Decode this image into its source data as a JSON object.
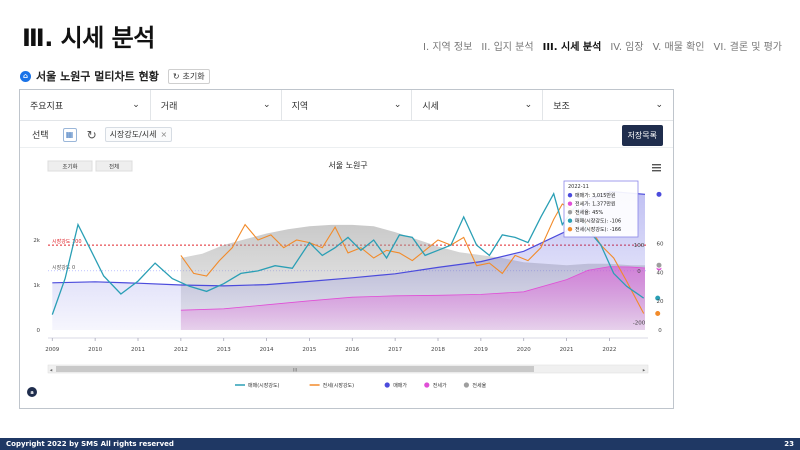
{
  "slide": {
    "title": "Ⅲ. 시세 분석",
    "nav": [
      "I. 지역 정보",
      "II. 입지 분석",
      "III. 시세 분석",
      "IV. 임장",
      "V. 매물 확인",
      "VI. 결론 및 평가"
    ],
    "active_index": 2
  },
  "subhead": {
    "title": "서울 노원구 멀티차트 현황",
    "reset": "초기화"
  },
  "filters": [
    "주요지표",
    "거래",
    "지역",
    "시세",
    "보조"
  ],
  "select_row": {
    "label": "선택",
    "chip": "시장강도/시세",
    "save": "저장목록"
  },
  "chart": {
    "btn_reset": "초기화",
    "btn_all": "전체",
    "title": "서울 노원구",
    "ref_label": "시장강도 100",
    "zero_label": "시장강도 0",
    "menu_icon": "hamburger-menu-icon",
    "scroll_label": "III",
    "logo_letter": "a",
    "colors": {
      "sale_strength": "#2a9fb5",
      "jeonse_strength": "#f28b2a",
      "sale_price": "#4b4bdc",
      "jeonse_price": "#e04fd6",
      "ratio": "#9e9e9e",
      "refline": "#e0242a"
    },
    "legend": [
      {
        "label": "매매(시장강도)",
        "color": "#2a9fb5",
        "shape": "line"
      },
      {
        "label": "전세(시장강도)",
        "color": "#f28b2a",
        "shape": "line"
      },
      {
        "label": "매매가",
        "color": "#4b4bdc",
        "shape": "dot"
      },
      {
        "label": "전세가",
        "color": "#e04fd6",
        "shape": "dot"
      },
      {
        "label": "전세율",
        "color": "#9e9e9e",
        "shape": "dot"
      }
    ],
    "tooltip": {
      "date": "2022-11",
      "rows": [
        {
          "text": "매매가: 3,015만원",
          "color": "#4b4bdc"
        },
        {
          "text": "전세가: 1,377만원",
          "color": "#e04fd6"
        },
        {
          "text": "전세율: 45%",
          "color": "#9e9e9e"
        },
        {
          "text": "매매(시장강도): -106",
          "color": "#2a9fb5"
        },
        {
          "text": "전세(시장강도): -166",
          "color": "#f28b2a"
        }
      ]
    }
  },
  "chart_data": {
    "type": "line",
    "title": "서울 노원구",
    "x_ticks": [
      "2009",
      "2010",
      "2011",
      "2012",
      "2013",
      "2014",
      "2015",
      "2016",
      "2017",
      "2018",
      "2019",
      "2020",
      "2021",
      "2022"
    ],
    "xlim": [
      2008.9,
      2022.9
    ],
    "left_axis": {
      "ticks": [
        "0",
        "1k",
        "2k"
      ],
      "ylim": [
        0,
        3200
      ]
    },
    "right_axis_1": {
      "ticks": [
        "0",
        "20",
        "40",
        "60"
      ],
      "ylim": [
        0,
        100
      ]
    },
    "right_axis_2": {
      "ticks": [
        "-200",
        "0",
        "100"
      ],
      "ylim": [
        -230,
        330
      ]
    },
    "series": [
      {
        "name": "매매(시장강도)",
        "axis": "right2",
        "points": [
          [
            2009.0,
            -170
          ],
          [
            2009.3,
            -30
          ],
          [
            2009.6,
            180
          ],
          [
            2009.9,
            80
          ],
          [
            2010.2,
            -20
          ],
          [
            2010.6,
            -90
          ],
          [
            2011.0,
            -40
          ],
          [
            2011.4,
            30
          ],
          [
            2011.8,
            -30
          ],
          [
            2012.2,
            -60
          ],
          [
            2012.6,
            -80
          ],
          [
            2013.0,
            -50
          ],
          [
            2013.4,
            -10
          ],
          [
            2013.8,
            0
          ],
          [
            2014.2,
            20
          ],
          [
            2014.6,
            10
          ],
          [
            2015.0,
            110
          ],
          [
            2015.3,
            60
          ],
          [
            2015.6,
            90
          ],
          [
            2015.9,
            130
          ],
          [
            2016.2,
            80
          ],
          [
            2016.5,
            120
          ],
          [
            2016.8,
            50
          ],
          [
            2017.1,
            140
          ],
          [
            2017.4,
            130
          ],
          [
            2017.7,
            60
          ],
          [
            2018.0,
            80
          ],
          [
            2018.3,
            100
          ],
          [
            2018.6,
            210
          ],
          [
            2018.9,
            100
          ],
          [
            2019.2,
            60
          ],
          [
            2019.5,
            140
          ],
          [
            2019.8,
            130
          ],
          [
            2020.1,
            110
          ],
          [
            2020.4,
            210
          ],
          [
            2020.7,
            300
          ],
          [
            2020.9,
            180
          ],
          [
            2021.2,
            250
          ],
          [
            2021.5,
            160
          ],
          [
            2021.8,
            100
          ],
          [
            2022.1,
            -10
          ],
          [
            2022.4,
            -60
          ],
          [
            2022.8,
            -106
          ]
        ]
      },
      {
        "name": "전세(시장강도)",
        "axis": "right2",
        "points": [
          [
            2012.0,
            60
          ],
          [
            2012.3,
            -10
          ],
          [
            2012.6,
            -20
          ],
          [
            2012.9,
            40
          ],
          [
            2013.2,
            90
          ],
          [
            2013.5,
            180
          ],
          [
            2013.8,
            120
          ],
          [
            2014.1,
            140
          ],
          [
            2014.4,
            90
          ],
          [
            2014.7,
            120
          ],
          [
            2015.0,
            110
          ],
          [
            2015.3,
            90
          ],
          [
            2015.6,
            170
          ],
          [
            2015.9,
            70
          ],
          [
            2016.2,
            90
          ],
          [
            2016.5,
            50
          ],
          [
            2016.8,
            80
          ],
          [
            2017.1,
            70
          ],
          [
            2017.4,
            40
          ],
          [
            2017.7,
            80
          ],
          [
            2018.0,
            120
          ],
          [
            2018.3,
            100
          ],
          [
            2018.6,
            130
          ],
          [
            2018.9,
            20
          ],
          [
            2019.2,
            30
          ],
          [
            2019.5,
            -10
          ],
          [
            2019.8,
            60
          ],
          [
            2020.1,
            40
          ],
          [
            2020.4,
            90
          ],
          [
            2020.7,
            200
          ],
          [
            2020.9,
            260
          ],
          [
            2021.2,
            230
          ],
          [
            2021.5,
            180
          ],
          [
            2021.8,
            100
          ],
          [
            2022.1,
            50
          ],
          [
            2022.4,
            -40
          ],
          [
            2022.8,
            -166
          ]
        ]
      },
      {
        "name": "매매가",
        "axis": "left",
        "points": [
          [
            2009.0,
            1050
          ],
          [
            2010.0,
            1070
          ],
          [
            2011.0,
            1040
          ],
          [
            2012.0,
            1000
          ],
          [
            2013.0,
            980
          ],
          [
            2014.0,
            1010
          ],
          [
            2015.0,
            1080
          ],
          [
            2016.0,
            1160
          ],
          [
            2017.0,
            1250
          ],
          [
            2018.0,
            1390
          ],
          [
            2019.0,
            1520
          ],
          [
            2020.0,
            1750
          ],
          [
            2021.0,
            2200
          ],
          [
            2021.5,
            2900
          ],
          [
            2022.0,
            3080
          ],
          [
            2022.5,
            3040
          ],
          [
            2022.83,
            3015
          ]
        ]
      },
      {
        "name": "전세가",
        "axis": "left",
        "points": [
          [
            2012.0,
            440
          ],
          [
            2013.0,
            470
          ],
          [
            2014.0,
            560
          ],
          [
            2015.0,
            650
          ],
          [
            2016.0,
            730
          ],
          [
            2017.0,
            760
          ],
          [
            2018.0,
            770
          ],
          [
            2019.0,
            790
          ],
          [
            2020.0,
            850
          ],
          [
            2021.0,
            1120
          ],
          [
            2021.5,
            1330
          ],
          [
            2022.0,
            1410
          ],
          [
            2022.5,
            1400
          ],
          [
            2022.83,
            1377
          ]
        ]
      },
      {
        "name": "전세율",
        "axis": "right1",
        "points": [
          [
            2012.0,
            50
          ],
          [
            2012.5,
            53
          ],
          [
            2013.0,
            59
          ],
          [
            2013.5,
            63
          ],
          [
            2014.0,
            67
          ],
          [
            2014.5,
            70
          ],
          [
            2015.0,
            72
          ],
          [
            2015.5,
            73
          ],
          [
            2016.0,
            73
          ],
          [
            2016.5,
            72
          ],
          [
            2017.0,
            68
          ],
          [
            2017.5,
            63
          ],
          [
            2018.0,
            58
          ],
          [
            2018.5,
            54
          ],
          [
            2019.0,
            52
          ],
          [
            2019.5,
            50
          ],
          [
            2020.0,
            47
          ],
          [
            2020.5,
            46
          ],
          [
            2021.0,
            45
          ],
          [
            2021.5,
            46
          ],
          [
            2022.0,
            46
          ],
          [
            2022.5,
            45
          ],
          [
            2022.83,
            45
          ]
        ]
      }
    ]
  },
  "footer": {
    "copyright": "Copyright 2022 by SMS All rights reserved",
    "page": "23"
  }
}
